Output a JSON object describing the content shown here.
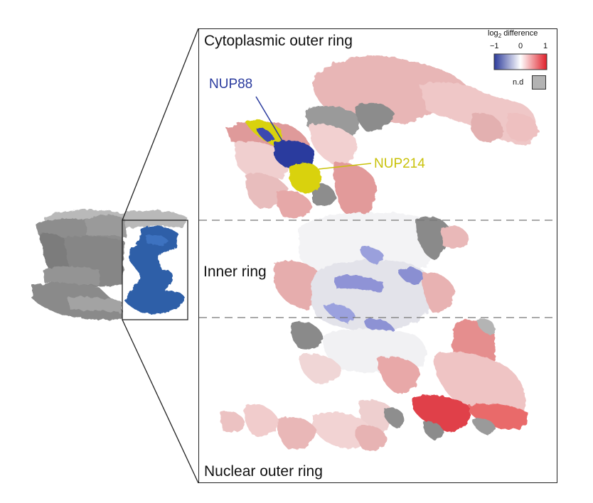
{
  "labels": {
    "cytoplasmic": "Cytoplasmic outer ring",
    "inner": "Inner ring",
    "nuclear": "Nuclear outer ring",
    "nup88": "NUP88",
    "nup214": "NUP214"
  },
  "legend": {
    "title_prefix": "log",
    "title_sub": "2",
    "title_suffix": " difference",
    "ticks": [
      "−1",
      "0",
      "1"
    ],
    "nd_label": "n.d",
    "colors": {
      "low": "#2b3a9a",
      "mid": "#ffffff",
      "high": "#e0202a",
      "nd": "#b3b3b3"
    }
  },
  "colors": {
    "nup88": "#2a3b9e",
    "nup214": "#d9d20e",
    "highlight_subunit": "#2f5fa8",
    "context_gray": "#8a8a8a"
  }
}
